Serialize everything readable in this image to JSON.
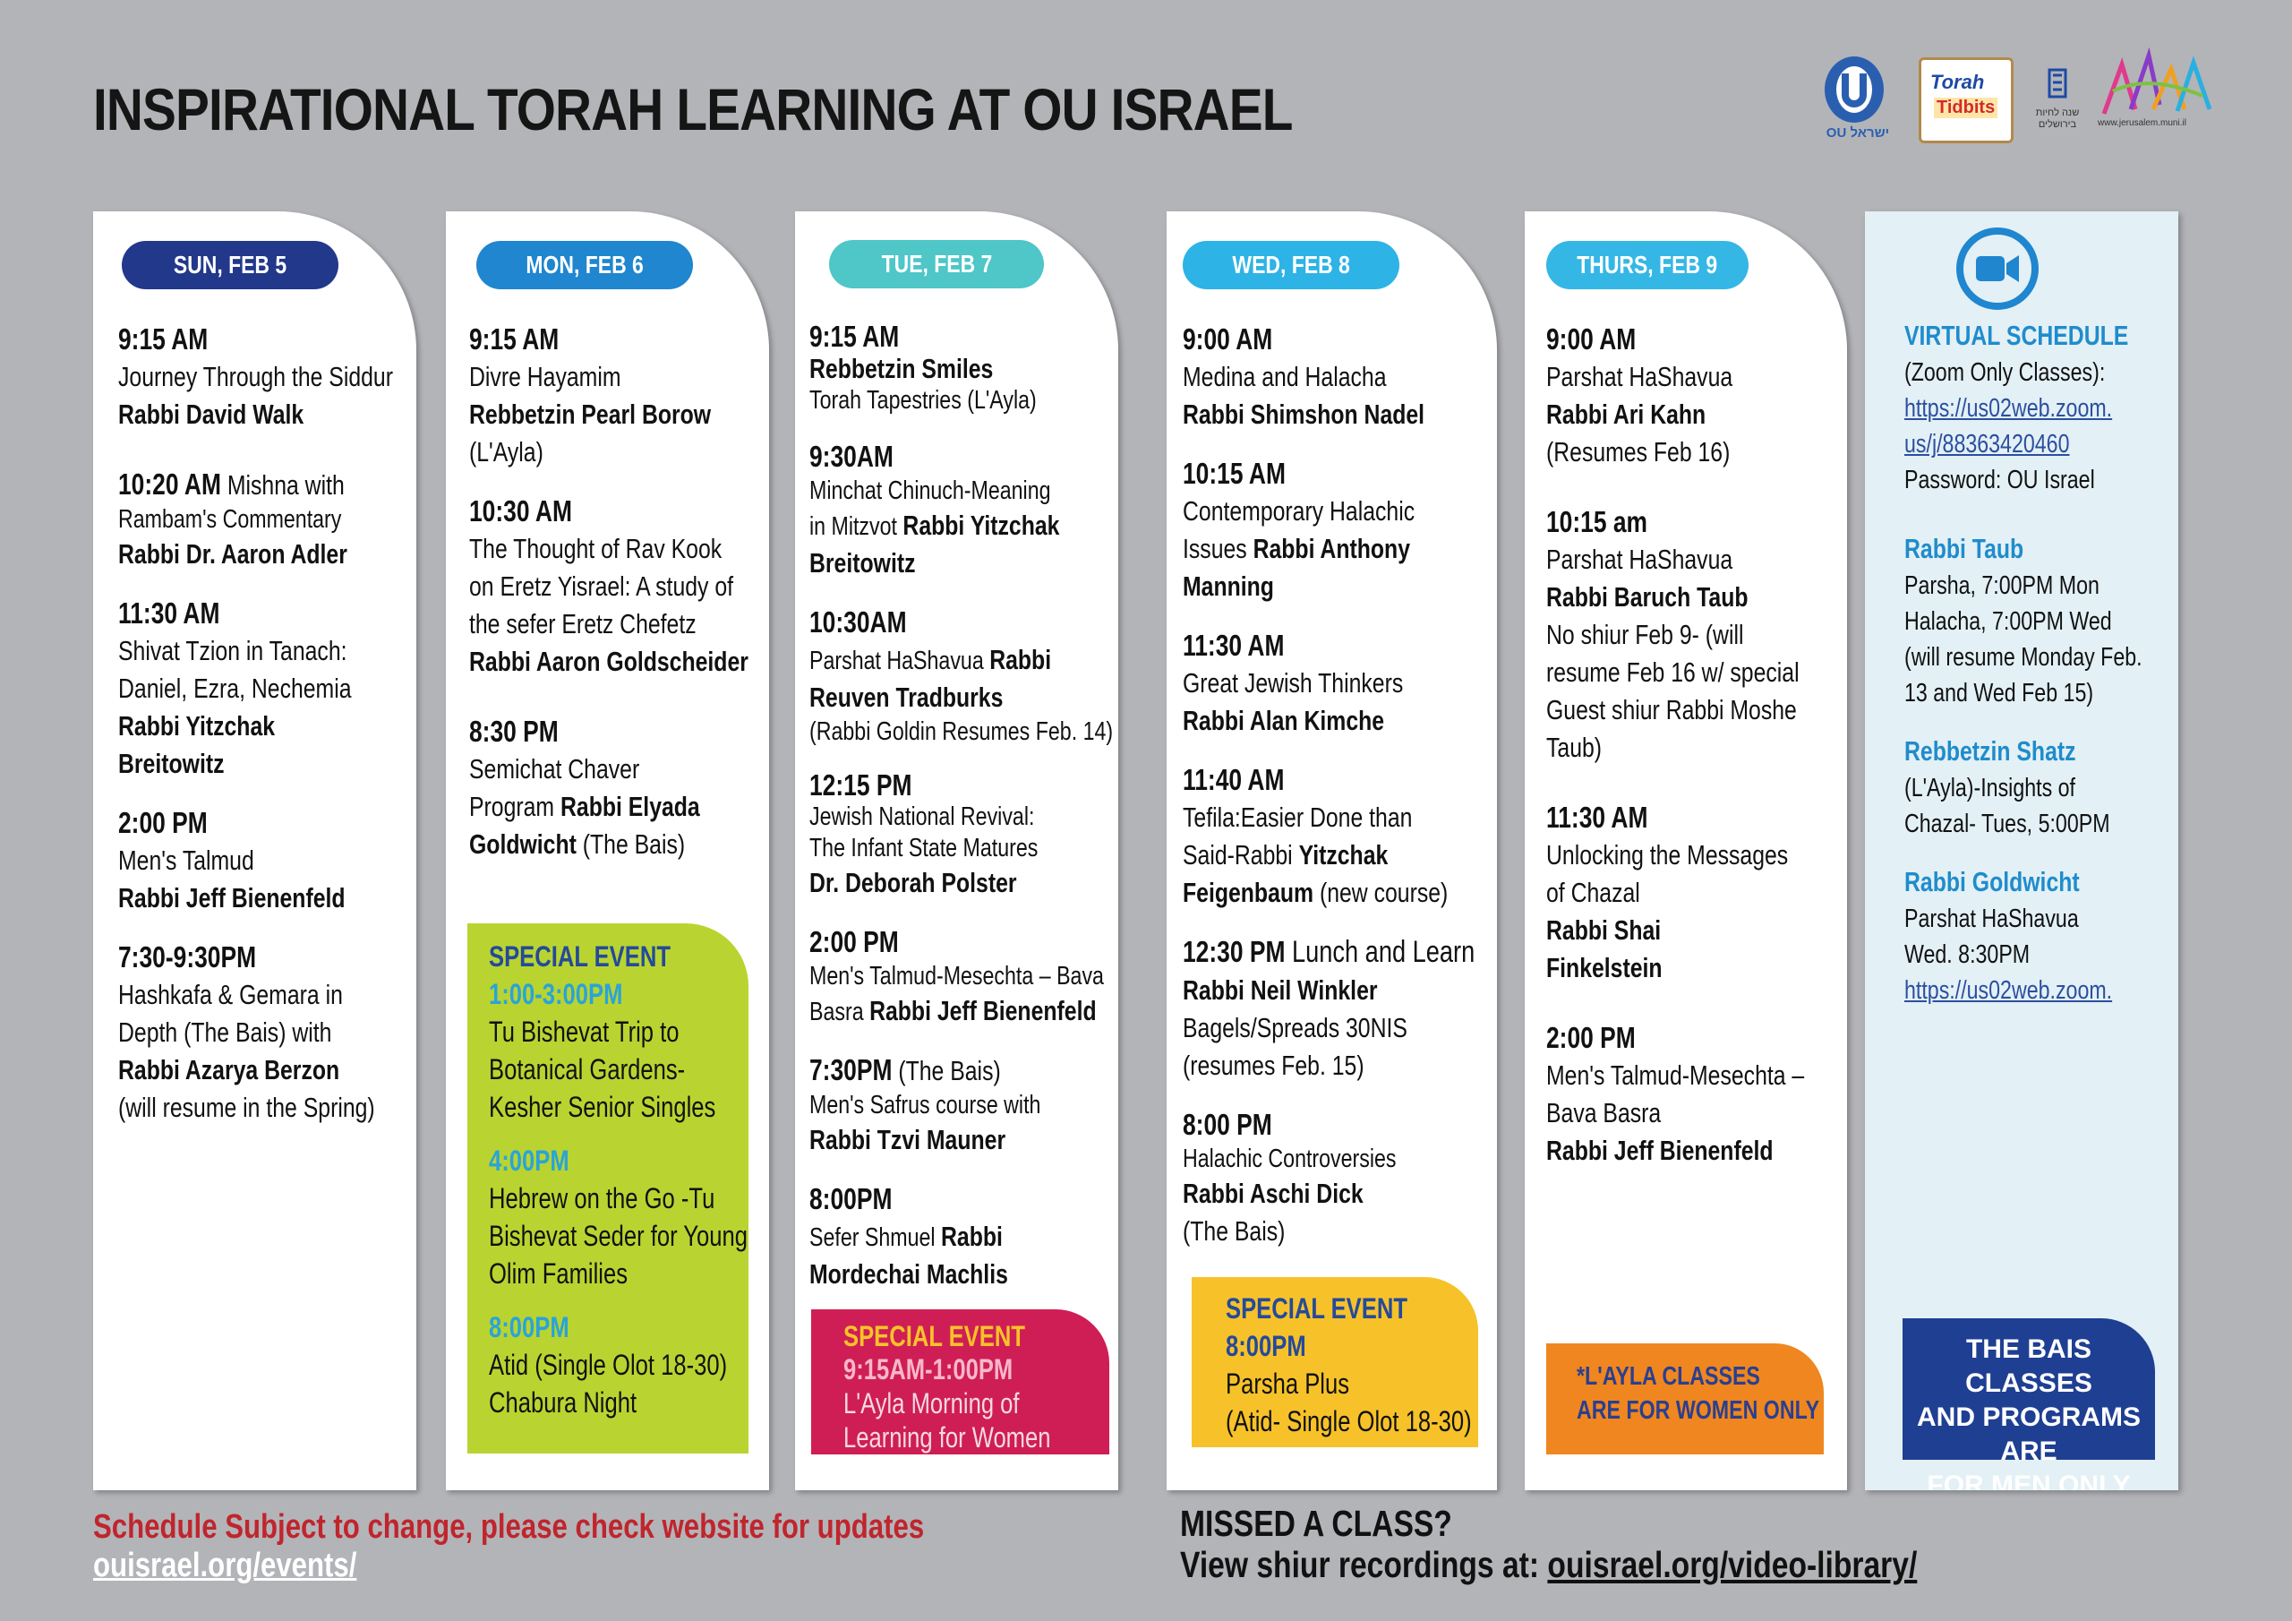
{
  "title": "INSPIRATIONAL TORAH LEARNING AT OU ISRAEL",
  "logos": {
    "ou_text": "OU ישראל",
    "torah_line1": "Torah",
    "torah_line2": "Tidbits",
    "jlm_text": "שנה לחיות בירושלים",
    "art_url": "www.jerusalem.muni.il"
  },
  "colors": {
    "sun": "#22388a",
    "mon": "#1f86cf",
    "tue": "#4fc6c8",
    "wed": "#2db3e6",
    "thu": "#35b7e6",
    "green_event": "#b9d430",
    "pink_event": "#cf1e55",
    "yellow_event": "#f7c229",
    "orange_note": "#f0861f",
    "navy_note": "#1f3f93",
    "virtual_bg": "#e3f0f5"
  },
  "sun": {
    "date": "SUN, FEB 5",
    "e1": {
      "time": "9:15 AM",
      "l1": "Journey Through the Siddur",
      "rabbi": "Rabbi David Walk"
    },
    "e2": {
      "time": "10:20 AM",
      "l1": " Mishna with",
      "l2": "Rambam's Commentary",
      "rabbi": "Rabbi Dr.  Aaron Adler"
    },
    "e3": {
      "time": "11:30 AM",
      "l1": "Shivat Tzion in Tanach:",
      "l2": "Daniel, Ezra, Nechemia",
      "r1": "Rabbi Yitzchak",
      "r2": "Breitowitz"
    },
    "e4": {
      "time": "2:00 PM",
      "l1": "Men's Talmud",
      "rabbi": "Rabbi Jeff Bienenfeld"
    },
    "e5": {
      "time": "7:30-9:30PM",
      "l1": "Hashkafa & Gemara in",
      "l2": "Depth (The Bais) with",
      "rabbi": "Rabbi  Azarya Berzon",
      "l3": "(will resume in the Spring)"
    }
  },
  "mon": {
    "date": "MON, FEB 6",
    "e1": {
      "time": "9:15 AM",
      "l1": "Divre Hayamim",
      "rabbi": "Rebbetzin Pearl Borow",
      "l2": "(L'Ayla)"
    },
    "e2": {
      "time": "10:30 AM",
      "l1": "The Thought of Rav Kook",
      "l2": "on Eretz Yisrael: A study of",
      "l3": "the sefer Eretz Chefetz",
      "rabbi": "Rabbi Aaron Goldscheider"
    },
    "e3": {
      "time": "8:30 PM",
      "l1": "Semichat Chaver",
      "l2": "Program ",
      "r1": "Rabbi Elyada",
      "r2": "Goldwicht",
      "l3": " (The Bais)"
    },
    "special": {
      "heading": "SPECIAL EVENT",
      "t1": "1:00-3:00PM",
      "a1": "Tu Bishevat Trip to",
      "a2": "Botanical Gardens-",
      "a3": "Kesher Senior Singles",
      "t2": "4:00PM",
      "b1": "Hebrew on the Go -Tu",
      "b2": "Bishevat Seder for Young",
      "b3": "Olim Families",
      "t3": "8:00PM",
      "c1": "Atid (Single Olot 18-30)",
      "c2": "Chabura Night"
    }
  },
  "tue": {
    "date": "TUE, FEB 7",
    "e1": {
      "time": "9:15 AM",
      "rabbi": "Rebbetzin Smiles",
      "l1": "Torah Tapestries (L'Ayla)"
    },
    "e2": {
      "time": "9:30AM",
      "l1": "Minchat Chinuch-Meaning",
      "l2": "in Mitzvot ",
      "r1": "Rabbi Yitzchak",
      "r2": "Breitowitz"
    },
    "e3": {
      "time": "10:30AM",
      "l1": "Parshat HaShavua ",
      "r1": "Rabbi",
      "r2": "Reuven Tradburks",
      "l2": "(Rabbi Goldin Resumes Feb. 14)"
    },
    "e4": {
      "time": "12:15 PM",
      "l1": "Jewish National Revival:",
      "l2": "The Infant State Matures",
      "rabbi": "Dr. Deborah Polster"
    },
    "e5": {
      "time": "2:00 PM",
      "l1": "Men's Talmud-Mesechta – Bava",
      "l2": "Basra ",
      "rabbi": "Rabbi Jeff Bienenfeld"
    },
    "e6": {
      "time": "7:30PM",
      "l0": " (The Bais)",
      "l1": "Men's Safrus course with",
      "rabbi": "Rabbi Tzvi Mauner"
    },
    "e7": {
      "time": "8:00PM",
      "l1": "Sefer Shmuel ",
      "r1": "Rabbi",
      "r2": "Mordechai Machlis"
    },
    "special": {
      "heading": "SPECIAL EVENT",
      "time": "9:15AM-1:00PM",
      "l1": "L'Ayla Morning of",
      "l2": "Learning for Women"
    }
  },
  "wed": {
    "date": "WED, FEB 8",
    "e1": {
      "time": "9:00 AM",
      "l1": "Medina and Halacha",
      "rabbi": "Rabbi Shimshon Nadel"
    },
    "e2": {
      "time": "10:15 AM",
      "l1": "Contemporary Halachic",
      "l2": "Issues ",
      "r1": "Rabbi Anthony",
      "r2": "Manning"
    },
    "e3": {
      "time": "11:30 AM",
      "l1": "Great Jewish Thinkers",
      "rabbi": "Rabbi Alan Kimche"
    },
    "e4": {
      "time": "11:40 AM",
      "l1": "Tefila:Easier Done than",
      "l2": "Said-Rabbi ",
      "r1": "Yitzchak",
      "r2": "Feigenbaum",
      "l3": " (new course)"
    },
    "e5": {
      "time": "12:30 PM",
      "l0": " Lunch and Learn",
      "rabbi": "Rabbi Neil Winkler",
      "l1": "Bagels/Spreads 30NIS",
      "l2": "(resumes Feb. 15)"
    },
    "e6": {
      "time": "8:00 PM",
      "l1": "Halachic Controversies",
      "rabbi": "Rabbi Aschi Dick",
      "l2": "(The Bais)"
    },
    "special": {
      "heading": "SPECIAL EVENT",
      "time": "8:00PM",
      "l1": "Parsha Plus",
      "l2": "(Atid- Single Olot 18-30)"
    }
  },
  "thu": {
    "date": "THURS, FEB 9",
    "e1": {
      "time": "9:00 AM",
      "l1": "Parshat HaShavua",
      "rabbi": "Rabbi Ari Kahn",
      "l2": "(Resumes Feb 16)"
    },
    "e2": {
      "time": "10:15 am",
      "l1": "Parshat HaShavua",
      "rabbi": "Rabbi Baruch Taub",
      "l2": "No shiur Feb 9- (will",
      "l3": "resume Feb 16 w/ special",
      "l4": "Guest shiur Rabbi Moshe",
      "l5": "Taub)"
    },
    "e3": {
      "time": "11:30 AM",
      "l1": "Unlocking the Messages",
      "l2": "of Chazal",
      "r1": "Rabbi Shai",
      "r2": "Finkelstein"
    },
    "e4": {
      "time": "2:00 PM",
      "l1": "Men's Talmud-Mesechta –",
      "l2": "Bava Basra",
      "rabbi": "Rabbi Jeff Bienenfeld"
    },
    "note": {
      "l1": "*L'AYLA CLASSES",
      "l2": "ARE FOR WOMEN ONLY"
    }
  },
  "virtual": {
    "heading": "VIRTUAL SCHEDULE",
    "l1": "(Zoom Only Classes):",
    "link1a": "https://us02web.zoom.",
    "link1b": "us/j/88363420460",
    "password": "Password: OU Israel",
    "taub": {
      "name": "Rabbi Taub",
      "l1": "Parsha, 7:00PM Mon",
      "l2": "Halacha, 7:00PM Wed",
      "l3": "(will resume Monday Feb.",
      "l4": "13 and Wed Feb 15)"
    },
    "shatz": {
      "name": "Rebbetzin Shatz",
      "l1": "(L'Ayla)-Insights of",
      "l2": "Chazal- Tues, 5:00PM"
    },
    "goldwicht": {
      "name": "Rabbi Goldwicht",
      "l1": "Parshat HaShavua",
      "l2": "Wed. 8:30PM",
      "link": "https://us02web.zoom."
    },
    "note": {
      "l1": "THE BAIS CLASSES",
      "l2": "AND PROGRAMS ARE",
      "l3": "FOR MEN ONLY"
    }
  },
  "footer": {
    "change": "Schedule Subject to change, please check website for updates",
    "events_link": "ouisrael.org/events/",
    "missed": "MISSED A CLASS?",
    "view": "View shiur recordings at: ",
    "library_link": "ouisrael.org/video-library/"
  }
}
